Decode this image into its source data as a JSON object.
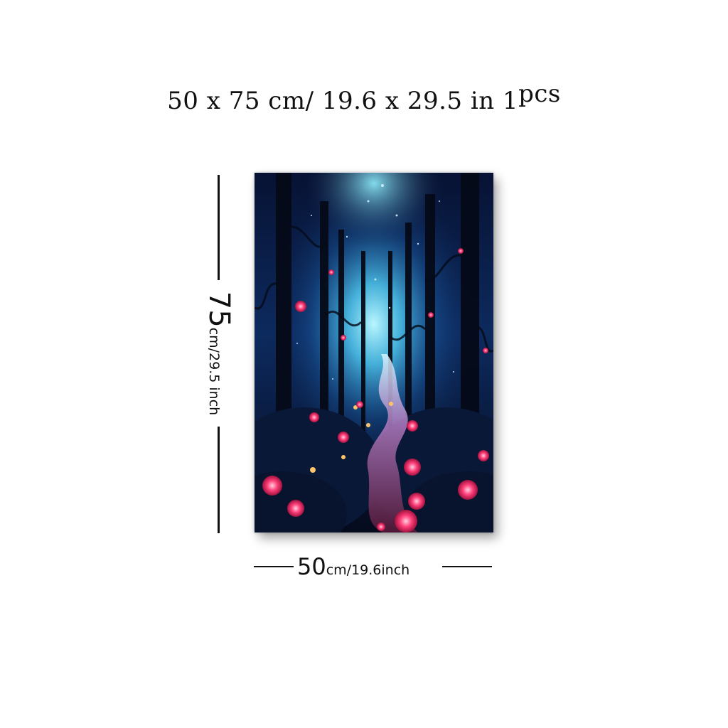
{
  "title": {
    "main": "50 x 75 cm/ 19.6 x 29.5 in 1",
    "suffix": "pcs"
  },
  "height_dim": {
    "value": "75",
    "unit": "cm/29.5 inch"
  },
  "width_dim": {
    "value": "50",
    "unit": "cm/19.6inch"
  },
  "artwork": {
    "subject": "glowing-forest-path-with-pink-roses"
  },
  "colors": {
    "sky_glow": "#7fe3ff",
    "deep_blue": "#0b1a44",
    "rose": "#ff3f7a",
    "candle": "#ffc46a"
  }
}
